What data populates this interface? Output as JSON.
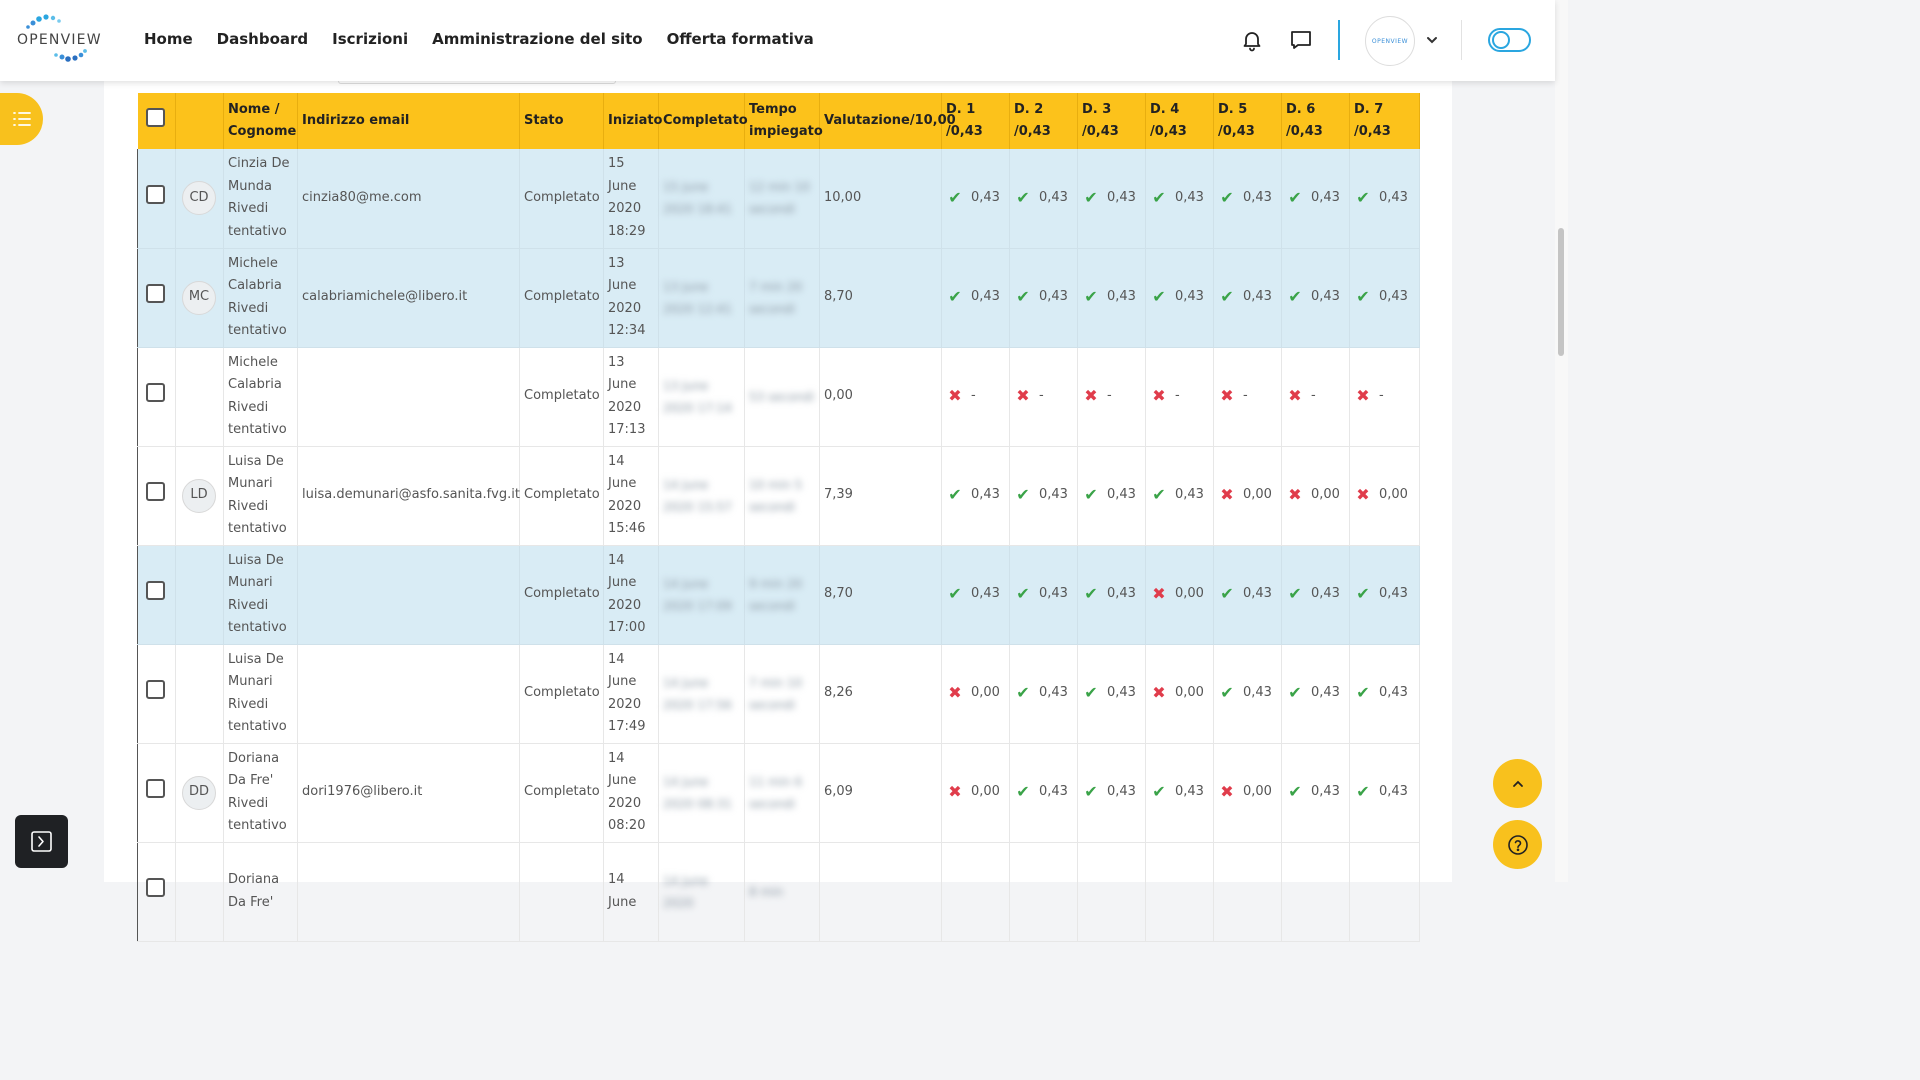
{
  "brand": {
    "logo_text": "OPENVIEW",
    "avatar_text": "OPENVIEW"
  },
  "nav": {
    "links": [
      "Home",
      "Dashboard",
      "Iscrizioni",
      "Amministrazione del sito",
      "Offerta formativa"
    ]
  },
  "icons": {
    "notifications": "bell-icon",
    "messages": "chat-icon",
    "user_menu": "chevron-down-icon",
    "drawer": "list-icon",
    "back_to_top": "chevron-up-icon",
    "help": "question-icon",
    "hide_blocks": "sidebar-toggle-icon"
  },
  "colors": {
    "accent": "#fcc21b",
    "brand_blue": "#2aa6e0",
    "highlight_row": "#d9ecf5",
    "correct": "#3aa348",
    "wrong": "#e03c4b"
  },
  "table": {
    "headers": {
      "name": "Nome / Cognome",
      "email": "Indirizzo email",
      "state": "Stato",
      "started": "Iniziato",
      "completed": "Completato",
      "time": "Tempo impiegato",
      "grade": "Valutazione/10,00",
      "q1": "D. 1 /0,43",
      "q2": "D. 2 /0,43",
      "q3": "D. 3 /0,43",
      "q4": "D. 4 /0,43",
      "q5": "D. 5 /0,43",
      "q6": "D. 6 /0,43",
      "q7": "D. 7 /0,43"
    },
    "rows": [
      {
        "initials": "CD",
        "name": "Cinzia De Munda",
        "review": "Rivedi tentativo",
        "email": "cinzia80@me.com",
        "state": "Completato",
        "started": "15 June 2020 18:29",
        "completed_blur": "15 June 2020 18:41",
        "time_blur": "12 min 10 secondi",
        "grade": "10,00",
        "q": [
          {
            "ok": true,
            "v": "0,43"
          },
          {
            "ok": true,
            "v": "0,43"
          },
          {
            "ok": true,
            "v": "0,43"
          },
          {
            "ok": true,
            "v": "0,43"
          },
          {
            "ok": true,
            "v": "0,43"
          },
          {
            "ok": true,
            "v": "0,43"
          },
          {
            "ok": true,
            "v": "0,43"
          }
        ]
      },
      {
        "initials": "MC",
        "name": "Michele Calabria",
        "review": "Rivedi tentativo",
        "email": "calabriamichele@libero.it",
        "state": "Completato",
        "started": "13 June 2020 12:34",
        "completed_blur": "13 June 2020 12:41",
        "time_blur": "7 min 20 secondi",
        "grade": "8,70",
        "q": [
          {
            "ok": true,
            "v": "0,43"
          },
          {
            "ok": true,
            "v": "0,43"
          },
          {
            "ok": true,
            "v": "0,43"
          },
          {
            "ok": true,
            "v": "0,43"
          },
          {
            "ok": true,
            "v": "0,43"
          },
          {
            "ok": true,
            "v": "0,43"
          },
          {
            "ok": true,
            "v": "0,43"
          }
        ]
      },
      {
        "initials": "",
        "name": "Michele Calabria",
        "review": "Rivedi tentativo",
        "email": "",
        "state": "Completato",
        "started": "13 June 2020 17:13",
        "completed_blur": "13 June 2020 17:14",
        "time_blur": "53 secondi",
        "grade": "0,00",
        "q": [
          {
            "ok": false,
            "v": "-"
          },
          {
            "ok": false,
            "v": "-"
          },
          {
            "ok": false,
            "v": "-"
          },
          {
            "ok": false,
            "v": "-"
          },
          {
            "ok": false,
            "v": "-"
          },
          {
            "ok": false,
            "v": "-"
          },
          {
            "ok": false,
            "v": "-"
          }
        ]
      },
      {
        "initials": "LD",
        "name": "Luisa De Munari",
        "review": "Rivedi tentativo",
        "email": "luisa.demunari@asfo.sanita.fvg.it",
        "state": "Completato",
        "started": "14 June 2020 15:46",
        "completed_blur": "14 June 2020 15:57",
        "time_blur": "10 min 5 secondi",
        "grade": "7,39",
        "q": [
          {
            "ok": true,
            "v": "0,43"
          },
          {
            "ok": true,
            "v": "0,43"
          },
          {
            "ok": true,
            "v": "0,43"
          },
          {
            "ok": true,
            "v": "0,43"
          },
          {
            "ok": false,
            "v": "0,00"
          },
          {
            "ok": false,
            "v": "0,00"
          },
          {
            "ok": false,
            "v": "0,00"
          }
        ]
      },
      {
        "initials": "",
        "name": "Luisa De Munari",
        "review": "Rivedi tentativo",
        "email": "",
        "state": "Completato",
        "started": "14 June 2020 17:00",
        "completed_blur": "14 June 2020 17:09",
        "time_blur": "9 min 20 secondi",
        "grade": "8,70",
        "q": [
          {
            "ok": true,
            "v": "0,43"
          },
          {
            "ok": true,
            "v": "0,43"
          },
          {
            "ok": true,
            "v": "0,43"
          },
          {
            "ok": false,
            "v": "0,00"
          },
          {
            "ok": true,
            "v": "0,43"
          },
          {
            "ok": true,
            "v": "0,43"
          },
          {
            "ok": true,
            "v": "0,43"
          }
        ]
      },
      {
        "initials": "",
        "name": "Luisa De Munari",
        "review": "Rivedi tentativo",
        "email": "",
        "state": "Completato",
        "started": "14 June 2020 17:49",
        "completed_blur": "14 June 2020 17:56",
        "time_blur": "7 min 10 secondi",
        "grade": "8,26",
        "q": [
          {
            "ok": false,
            "v": "0,00"
          },
          {
            "ok": true,
            "v": "0,43"
          },
          {
            "ok": true,
            "v": "0,43"
          },
          {
            "ok": false,
            "v": "0,00"
          },
          {
            "ok": true,
            "v": "0,43"
          },
          {
            "ok": true,
            "v": "0,43"
          },
          {
            "ok": true,
            "v": "0,43"
          }
        ]
      },
      {
        "initials": "DD",
        "name": "Doriana Da Fre'",
        "review": "Rivedi tentativo",
        "email": "dori1976@libero.it",
        "state": "Completato",
        "started": "14 June 2020 08:20",
        "completed_blur": "14 June 2020 08:31",
        "time_blur": "11 min 6 secondi",
        "grade": "6,09",
        "q": [
          {
            "ok": false,
            "v": "0,00"
          },
          {
            "ok": true,
            "v": "0,43"
          },
          {
            "ok": true,
            "v": "0,43"
          },
          {
            "ok": true,
            "v": "0,43"
          },
          {
            "ok": false,
            "v": "0,00"
          },
          {
            "ok": true,
            "v": "0,43"
          },
          {
            "ok": true,
            "v": "0,43"
          }
        ]
      },
      {
        "initials": "",
        "name": "Doriana Da Fre'",
        "review": "",
        "email": "",
        "state": "",
        "started": "14 June",
        "completed_blur": "14 June 2020",
        "time_blur": "8 min",
        "grade": "",
        "q": []
      }
    ],
    "highlighted_rows": [
      0,
      1,
      4
    ]
  }
}
